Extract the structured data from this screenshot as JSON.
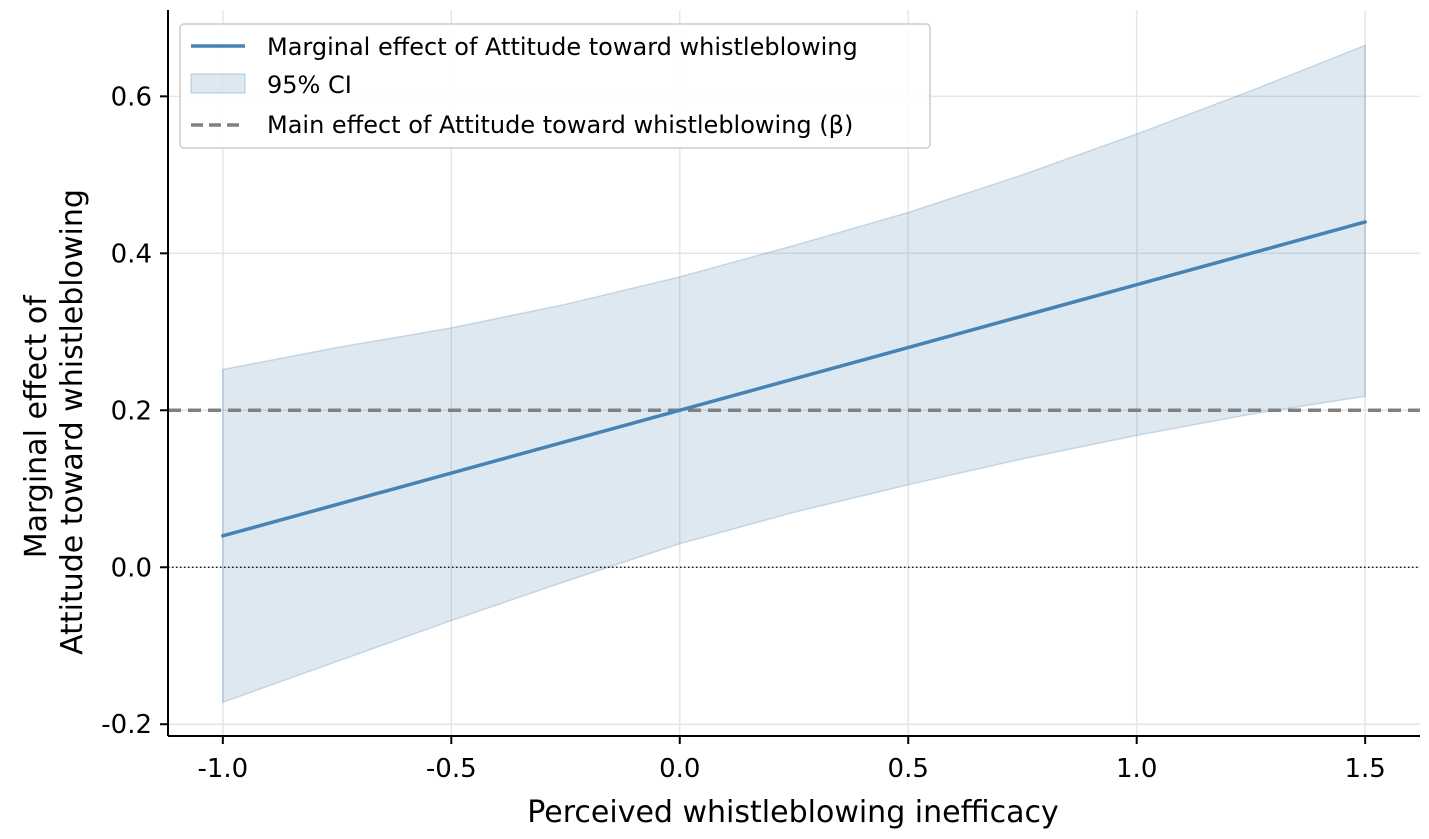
{
  "chart_data": {
    "type": "line",
    "xlabel": "Perceived whistleblowing inefficacy",
    "ylabel_lines": [
      "Marginal effect of",
      "Attitude toward whistleblowing"
    ],
    "xlim": [
      -1.12,
      1.62
    ],
    "ylim": [
      -0.215,
      0.71
    ],
    "x_ticks": [
      -1.0,
      -0.5,
      0.0,
      0.5,
      1.0,
      1.5
    ],
    "x_tick_labels": [
      "-1.0",
      "-0.5",
      "0.0",
      "0.5",
      "1.0",
      "1.5"
    ],
    "y_ticks": [
      -0.2,
      0.0,
      0.2,
      0.4,
      0.6
    ],
    "y_tick_labels": [
      "-0.2",
      "0.0",
      "0.2",
      "0.4",
      "0.6"
    ],
    "grid": true,
    "legend_position": "top-left",
    "series": [
      {
        "name": "Marginal effect of Attitude toward whistleblowing",
        "kind": "line",
        "color": "#4682b4",
        "x": [
          -1.0,
          1.5
        ],
        "y": [
          0.04,
          0.44
        ]
      },
      {
        "name": "95% CI",
        "kind": "band",
        "color": "#4682b4",
        "x": [
          -1.0,
          -0.75,
          -0.5,
          -0.25,
          0.0,
          0.25,
          0.5,
          0.75,
          1.0,
          1.25,
          1.5
        ],
        "lower": [
          -0.172,
          -0.12,
          -0.068,
          -0.018,
          0.03,
          0.07,
          0.105,
          0.138,
          0.168,
          0.195,
          0.218
        ],
        "upper": [
          0.252,
          0.28,
          0.305,
          0.335,
          0.37,
          0.41,
          0.452,
          0.5,
          0.552,
          0.607,
          0.665
        ]
      },
      {
        "name": "Main effect of Attitude toward whistleblowing (β)",
        "kind": "hline",
        "color": "#808080",
        "y": 0.2
      }
    ],
    "reference_line": {
      "y": 0.0,
      "style": "dotted",
      "color": "#000000"
    }
  }
}
